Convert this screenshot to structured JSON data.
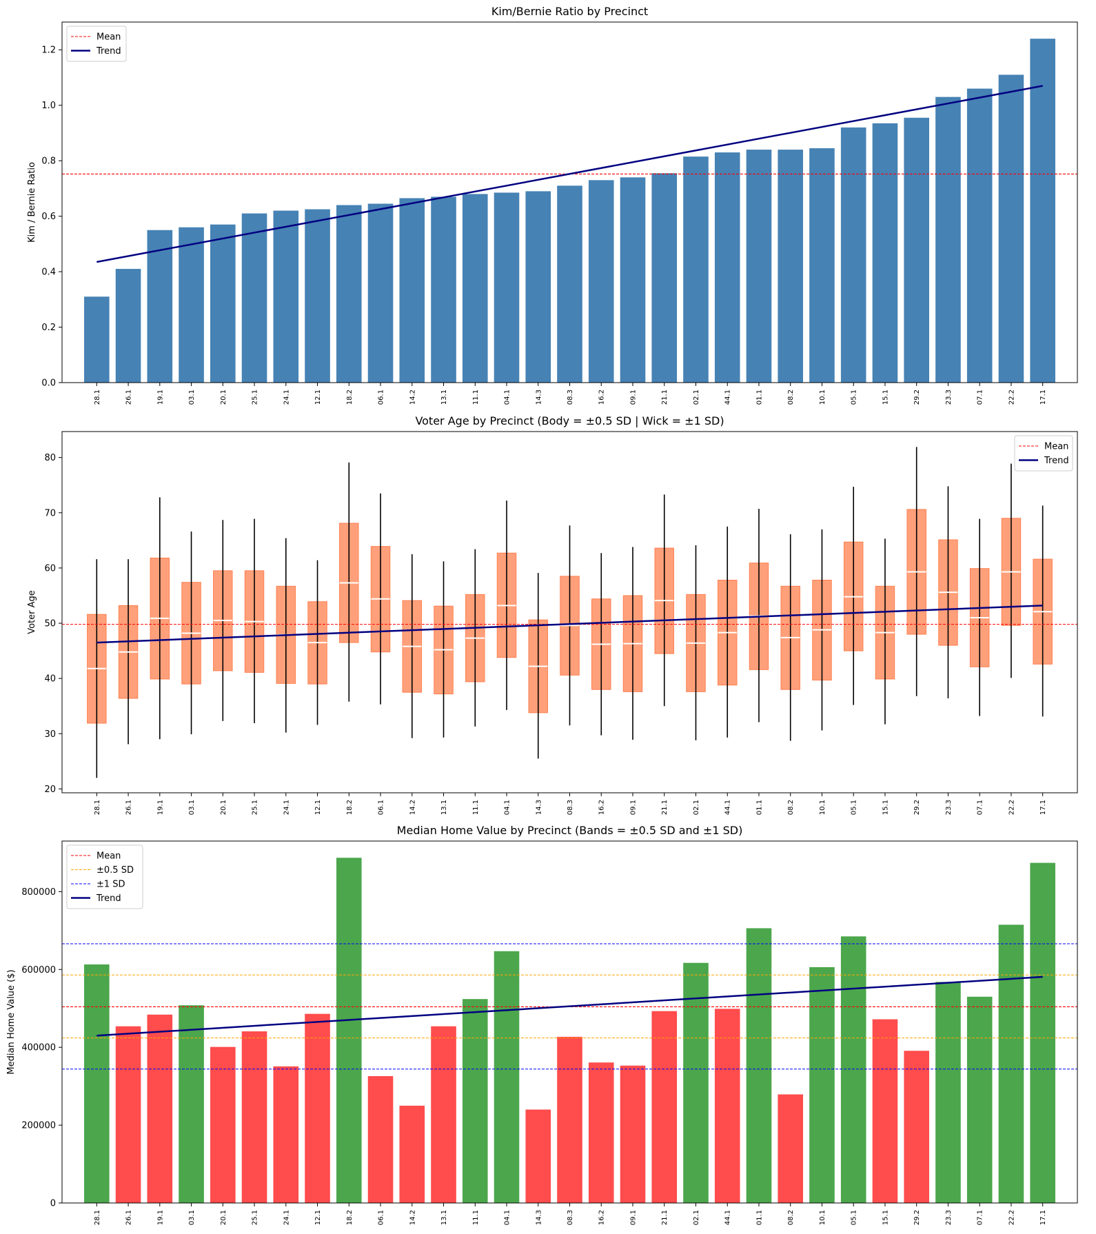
{
  "chart_data": [
    {
      "type": "bar",
      "title": "Kim/Bernie Ratio by Precinct",
      "xlabel": "",
      "ylabel": "Kim / Bernie Ratio",
      "ylim": [
        0,
        1.3
      ],
      "yticks": [
        0.0,
        0.2,
        0.4,
        0.6,
        0.8,
        1.0,
        1.2
      ],
      "ytick_labels": [
        "0.0",
        "0.2",
        "0.4",
        "0.6",
        "0.8",
        "1.0",
        "1.2"
      ],
      "categories": [
        "28.1",
        "26.1",
        "19.1",
        "03.1",
        "20.1",
        "25.1",
        "24.1",
        "12.1",
        "18.2",
        "06.1",
        "14.2",
        "13.1",
        "11.1",
        "04.1",
        "14.3",
        "08.3",
        "16.2",
        "09.1",
        "21.1",
        "02.1",
        "44.1",
        "01.1",
        "08.2",
        "10.1",
        "05.1",
        "15.1",
        "29.2",
        "23.3",
        "07.1",
        "22.2",
        "17.1"
      ],
      "values": [
        0.31,
        0.41,
        0.55,
        0.56,
        0.57,
        0.61,
        0.62,
        0.625,
        0.64,
        0.645,
        0.665,
        0.67,
        0.68,
        0.685,
        0.69,
        0.71,
        0.73,
        0.74,
        0.755,
        0.815,
        0.83,
        0.84,
        0.84,
        0.845,
        0.92,
        0.935,
        0.955,
        1.03,
        1.06,
        1.11,
        1.24
      ],
      "bar_color": "#4682b4",
      "mean": 0.752,
      "mean_color": "#ff0000",
      "trend": {
        "start": 0.435,
        "end": 1.07,
        "color": "#000080"
      },
      "legend": {
        "location": "upper-left",
        "entries": [
          {
            "label": "Mean",
            "style": "dashed",
            "color": "#ff0000"
          },
          {
            "label": "Trend",
            "style": "solid",
            "color": "#000080"
          }
        ]
      }
    },
    {
      "type": "candlestick",
      "title": "Voter Age by Precinct  (Body = ±0.5 SD  |  Wick = ±1 SD)",
      "xlabel": "",
      "ylabel": "Voter Age",
      "ylim": [
        19.3,
        84.7
      ],
      "yticks": [
        20,
        30,
        40,
        50,
        60,
        70,
        80
      ],
      "ytick_labels": [
        "20",
        "30",
        "40",
        "50",
        "60",
        "70",
        "80"
      ],
      "categories": [
        "28.1",
        "26.1",
        "19.1",
        "03.1",
        "20.1",
        "25.1",
        "24.1",
        "12.1",
        "18.2",
        "06.1",
        "14.2",
        "13.1",
        "11.1",
        "04.1",
        "14.3",
        "08.3",
        "16.2",
        "09.1",
        "21.1",
        "02.1",
        "44.1",
        "01.1",
        "08.2",
        "10.1",
        "05.1",
        "15.1",
        "29.2",
        "23.3",
        "07.1",
        "22.2",
        "17.1"
      ],
      "body_low": [
        31.9,
        36.4,
        39.9,
        39.0,
        41.4,
        41.1,
        39.1,
        39.0,
        46.5,
        44.8,
        37.5,
        37.2,
        39.4,
        43.8,
        33.8,
        40.6,
        38.0,
        37.6,
        44.5,
        37.6,
        38.8,
        41.6,
        38.0,
        39.7,
        45.0,
        39.9,
        48.0,
        46.0,
        42.1,
        49.6,
        42.6
      ],
      "body_high": [
        51.6,
        53.2,
        61.8,
        57.4,
        59.5,
        59.5,
        56.7,
        53.9,
        68.1,
        63.9,
        54.1,
        53.1,
        55.2,
        62.7,
        50.6,
        58.5,
        54.4,
        55.0,
        63.6,
        55.2,
        57.8,
        60.9,
        56.7,
        57.8,
        64.7,
        56.7,
        70.6,
        65.1,
        59.9,
        69.0,
        61.6
      ],
      "median": [
        41.8,
        44.8,
        50.9,
        48.2,
        50.5,
        50.3,
        47.9,
        46.5,
        57.3,
        54.4,
        45.8,
        45.2,
        47.3,
        53.2,
        42.2,
        49.6,
        46.2,
        46.3,
        54.1,
        46.4,
        48.3,
        51.3,
        47.4,
        48.8,
        54.8,
        48.3,
        59.3,
        55.6,
        51.0,
        59.3,
        52.1
      ],
      "wick_low": [
        22.0,
        28.1,
        29.0,
        29.9,
        32.3,
        31.9,
        30.2,
        31.6,
        35.8,
        35.3,
        29.2,
        29.3,
        31.3,
        34.3,
        25.5,
        31.5,
        29.7,
        28.9,
        35.0,
        28.8,
        29.3,
        32.1,
        28.7,
        30.6,
        35.2,
        31.7,
        36.8,
        36.4,
        33.2,
        40.1,
        33.1
      ],
      "wick_high": [
        61.6,
        61.6,
        72.8,
        66.6,
        68.7,
        68.9,
        65.4,
        61.4,
        79.1,
        73.5,
        62.5,
        61.2,
        63.4,
        72.2,
        59.1,
        67.7,
        62.7,
        63.8,
        73.3,
        64.1,
        67.5,
        70.7,
        66.1,
        67.0,
        74.7,
        65.3,
        81.9,
        74.8,
        68.9,
        78.9,
        71.3
      ],
      "body_color": "#ffa07a",
      "body_edge_color": "#ff7f50",
      "median_color": "#ffffff",
      "wick_color": "#000000",
      "mean": 49.8,
      "mean_color": "#ff0000",
      "trend": {
        "start": 46.5,
        "end": 53.2,
        "color": "#000080"
      },
      "legend": {
        "location": "upper-right",
        "entries": [
          {
            "label": "Mean",
            "style": "dashed",
            "color": "#ff0000"
          },
          {
            "label": "Trend",
            "style": "solid",
            "color": "#000080"
          }
        ]
      }
    },
    {
      "type": "bar",
      "title": "Median Home Value by Precinct  (Bands = ±0.5 SD and ±1 SD)",
      "xlabel": "",
      "ylabel": "Median Home Value ($)",
      "ylim": [
        0,
        930000
      ],
      "yticks": [
        0,
        200000,
        400000,
        600000,
        800000
      ],
      "ytick_labels": [
        "0",
        "200000",
        "400000",
        "600000",
        "800000"
      ],
      "categories": [
        "28.1",
        "26.1",
        "19.1",
        "03.1",
        "20.1",
        "25.1",
        "24.1",
        "12.1",
        "18.2",
        "06.1",
        "14.2",
        "13.1",
        "11.1",
        "04.1",
        "14.3",
        "08.3",
        "16.2",
        "09.1",
        "21.1",
        "02.1",
        "44.1",
        "01.1",
        "08.2",
        "10.1",
        "05.1",
        "15.1",
        "29.2",
        "23.3",
        "07.1",
        "22.2",
        "17.1"
      ],
      "values": [
        613000,
        454000,
        484000,
        508000,
        401000,
        441000,
        351000,
        486000,
        887000,
        326000,
        250000,
        454000,
        524000,
        647000,
        240000,
        427000,
        361000,
        353000,
        493000,
        617000,
        499000,
        706000,
        279000,
        606000,
        685000,
        472000,
        391000,
        568000,
        530000,
        715000,
        874000
      ],
      "above_mean_color": "#4ca64c",
      "below_mean_color": "#ff4c4c",
      "mean": 504000,
      "mean_color": "#ff0000",
      "half_sd_band": [
        424000,
        586000
      ],
      "half_sd_color": "#ffa500",
      "one_sd_band": [
        344000,
        666000
      ],
      "one_sd_color": "#0000ff",
      "trend": {
        "start": 430000,
        "end": 581000,
        "color": "#000080"
      },
      "legend": {
        "location": "upper-left",
        "entries": [
          {
            "label": "Mean",
            "style": "dashed",
            "color": "#ff0000"
          },
          {
            "label": "±0.5 SD",
            "style": "dashed",
            "color": "#ffa500"
          },
          {
            "label": "±1 SD",
            "style": "dashed",
            "color": "#0000ff"
          },
          {
            "label": "Trend",
            "style": "solid",
            "color": "#000080"
          }
        ]
      }
    }
  ]
}
